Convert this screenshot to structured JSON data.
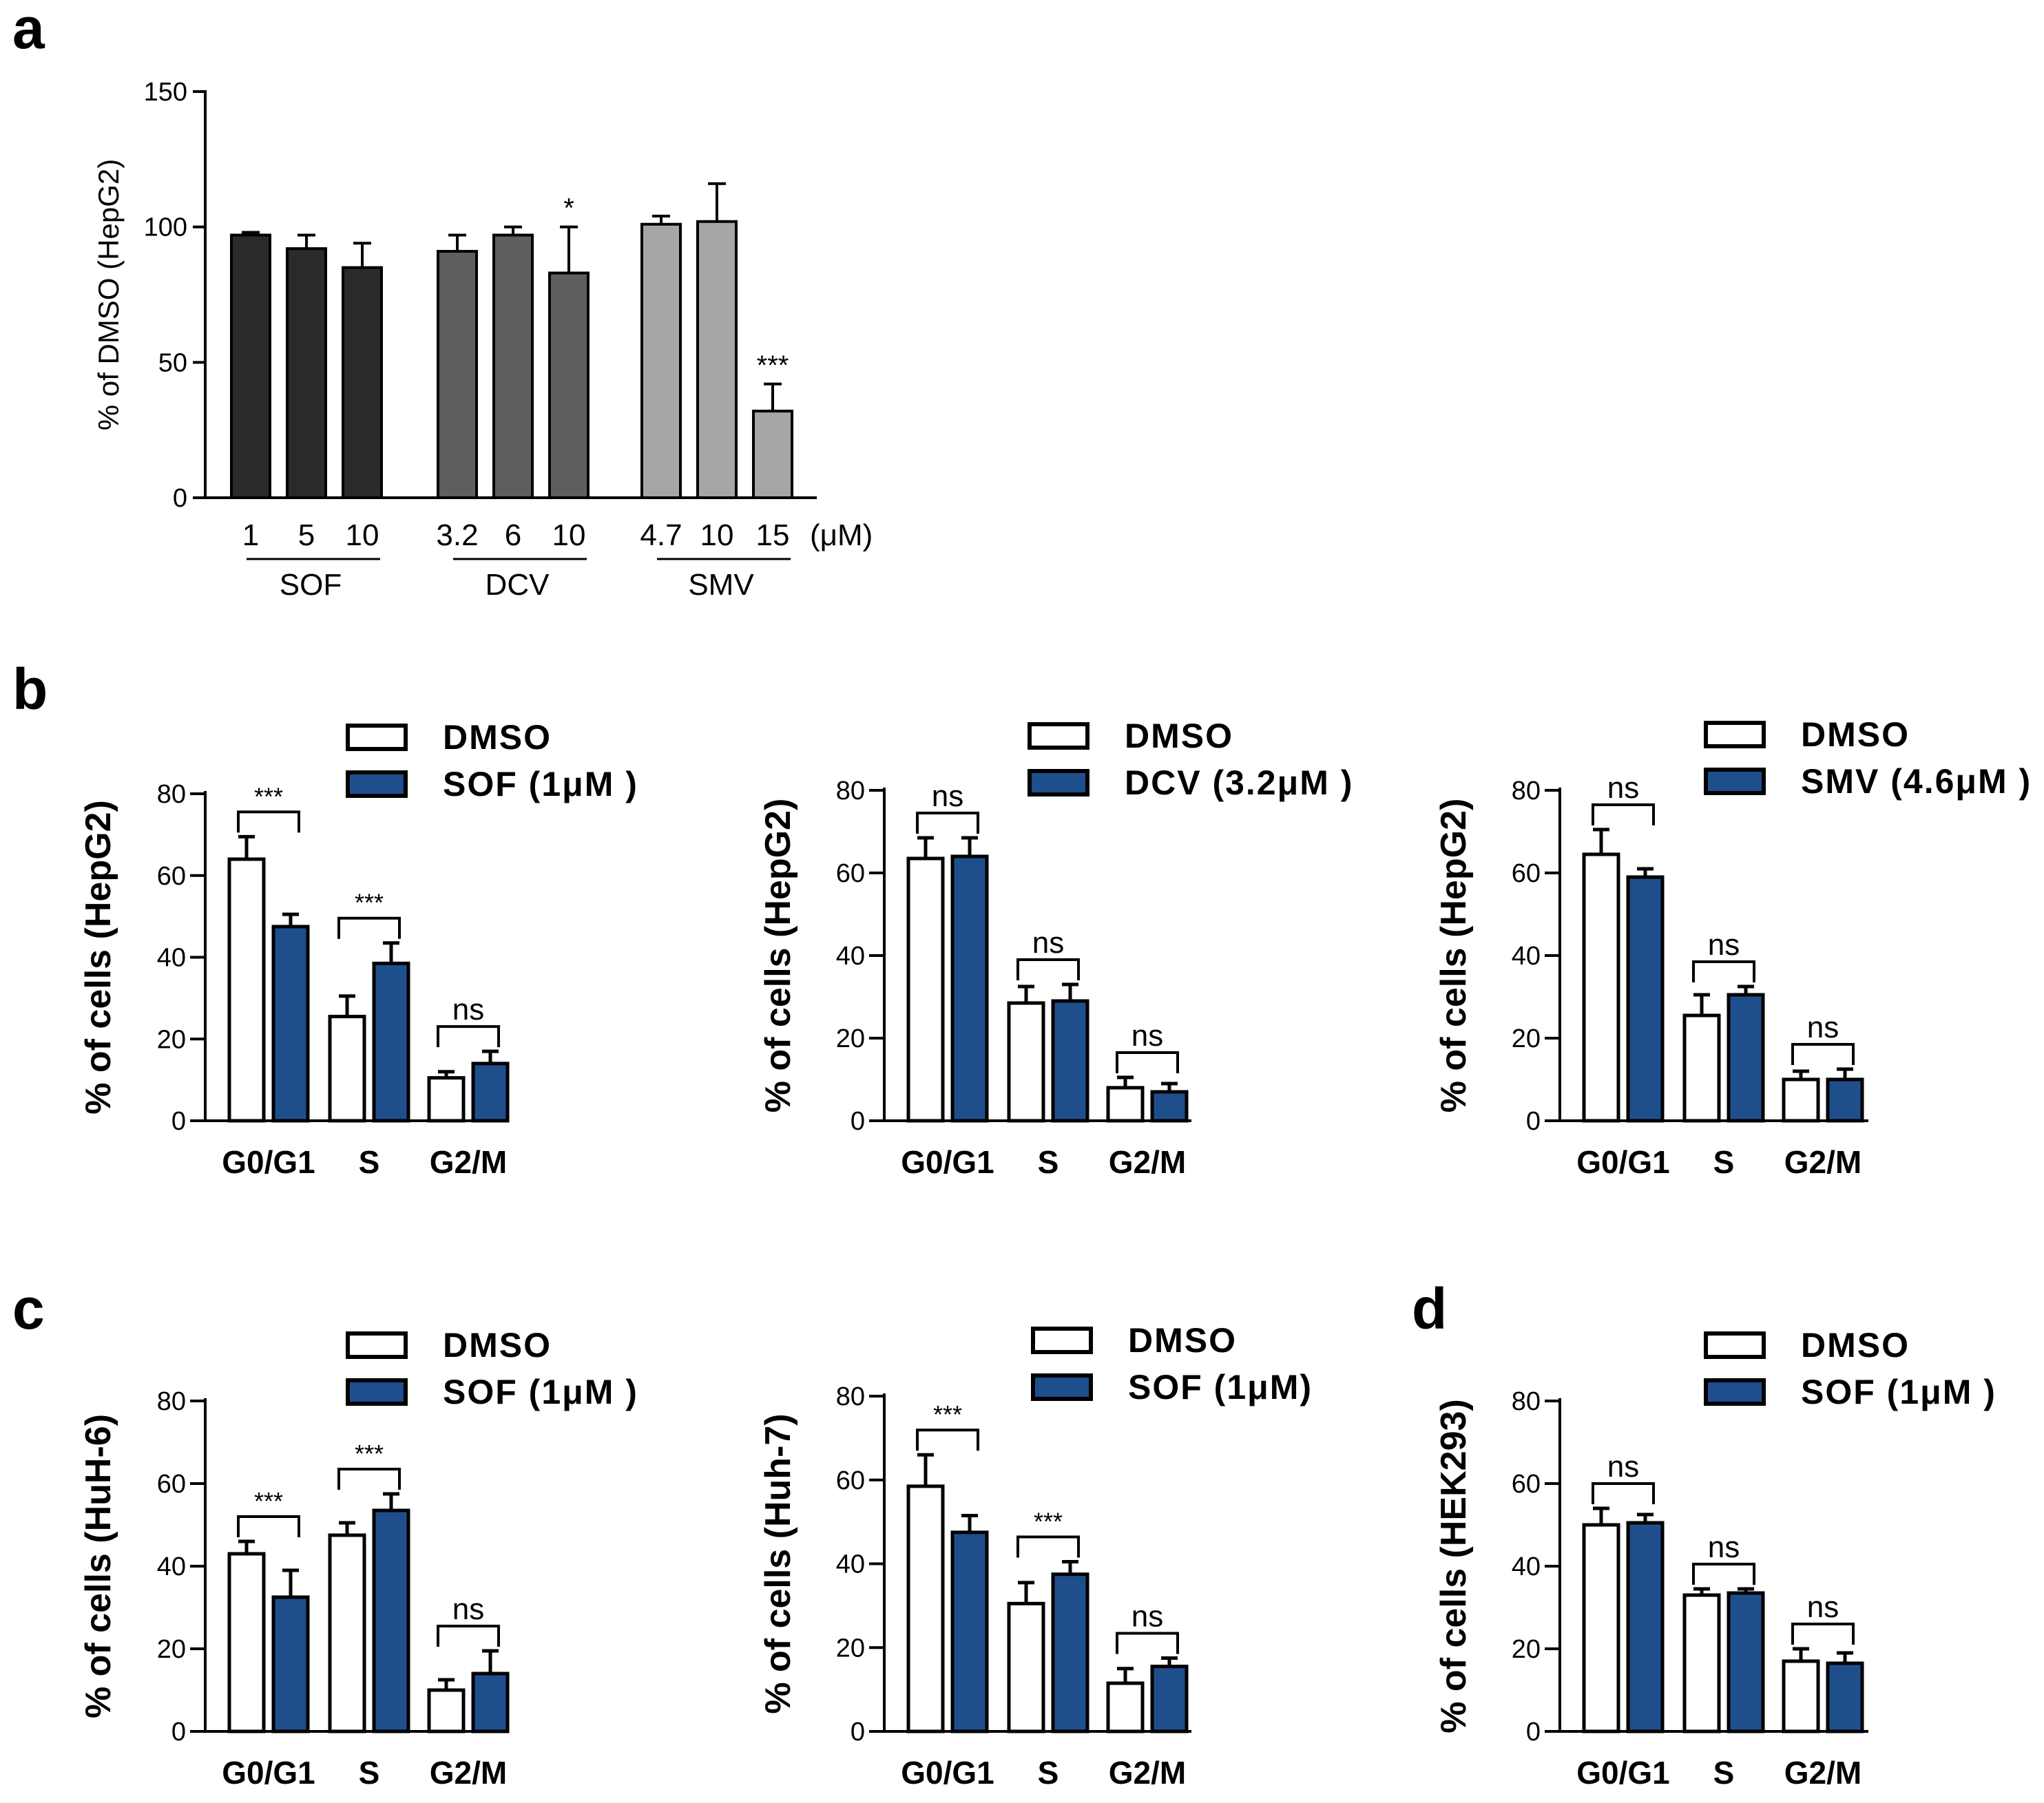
{
  "colors": {
    "sof_bar": "#2a2a2a",
    "dcv_bar": "#5e5e5e",
    "smv_bar": "#a6a6a6",
    "dmso_fill": "#ffffff",
    "treated_fill": "#1f4e8c",
    "axis": "#000000"
  },
  "panel_letters": {
    "a": "a",
    "b": "b",
    "c": "c",
    "d": "d"
  },
  "chart_data": [
    {
      "id": "a",
      "type": "bar",
      "ylabel": "% of DMSO (HepG2)",
      "ylim": [
        0,
        150
      ],
      "yticks": [
        0,
        50,
        100,
        150
      ],
      "unit_label": "(μM)",
      "groups": [
        {
          "name": "SOF",
          "color_key": "sof_bar",
          "categories": [
            "1",
            "5",
            "10"
          ],
          "values": [
            97,
            92,
            85
          ],
          "errors": [
            1,
            5,
            9
          ],
          "sig": [
            "",
            "",
            ""
          ]
        },
        {
          "name": "DCV",
          "color_key": "dcv_bar",
          "categories": [
            "3.2",
            "6",
            "10"
          ],
          "values": [
            91,
            97,
            83
          ],
          "errors": [
            6,
            3,
            17
          ],
          "sig": [
            "",
            "",
            "*"
          ]
        },
        {
          "name": "SMV",
          "color_key": "smv_bar",
          "categories": [
            "4.7",
            "10",
            "15"
          ],
          "values": [
            101,
            102,
            32
          ],
          "errors": [
            3,
            14,
            10
          ],
          "sig": [
            "",
            "",
            "***"
          ]
        }
      ]
    },
    {
      "id": "b1",
      "type": "bar",
      "ylabel": "% of cells (HepG2)",
      "ylim": [
        0,
        80
      ],
      "yticks": [
        0,
        20,
        40,
        60,
        80
      ],
      "categories": [
        "G0/G1",
        "S",
        "G2/M"
      ],
      "series": [
        {
          "name": "DMSO",
          "values": [
            64,
            25.5,
            10.5
          ],
          "errors": [
            5.5,
            5,
            1.5
          ]
        },
        {
          "name": "SOF (1μM )",
          "values": [
            47.5,
            38.5,
            14
          ],
          "errors": [
            3,
            5,
            3
          ]
        }
      ],
      "significance": [
        "***",
        "***",
        "ns"
      ]
    },
    {
      "id": "b2",
      "type": "bar",
      "ylabel": "% of cells (HepG2)",
      "ylim": [
        0,
        80
      ],
      "yticks": [
        0,
        20,
        40,
        60,
        80
      ],
      "categories": [
        "G0/G1",
        "S",
        "G2/M"
      ],
      "series": [
        {
          "name": "DMSO",
          "values": [
            63.5,
            28.5,
            8
          ],
          "errors": [
            5,
            4,
            2.5
          ]
        },
        {
          "name": "DCV (3.2μM )",
          "values": [
            64,
            29,
            7
          ],
          "errors": [
            4.5,
            4,
            2
          ]
        }
      ],
      "significance": [
        "ns",
        "ns",
        "ns"
      ]
    },
    {
      "id": "b3",
      "type": "bar",
      "ylabel": "% of cells (HepG2)",
      "ylim": [
        0,
        80
      ],
      "yticks": [
        0,
        20,
        40,
        60,
        80
      ],
      "categories": [
        "G0/G1",
        "S",
        "G2/M"
      ],
      "series": [
        {
          "name": "DMSO",
          "values": [
            64.5,
            25.5,
            10
          ],
          "errors": [
            6,
            5,
            2
          ]
        },
        {
          "name": "SMV (4.6μM )",
          "values": [
            59,
            30.5,
            10
          ],
          "errors": [
            2,
            2,
            2.5
          ]
        }
      ],
      "significance": [
        "ns",
        "ns",
        "ns"
      ]
    },
    {
      "id": "c1",
      "type": "bar",
      "ylabel": "% of cells (HuH-6)",
      "ylim": [
        0,
        80
      ],
      "yticks": [
        0,
        20,
        40,
        60,
        80
      ],
      "categories": [
        "G0/G1",
        "S",
        "G2/M"
      ],
      "series": [
        {
          "name": "DMSO",
          "values": [
            43,
            47.5,
            10
          ],
          "errors": [
            3,
            3,
            2.5
          ]
        },
        {
          "name": "SOF (1μM )",
          "values": [
            32.5,
            53.5,
            14
          ],
          "errors": [
            6.5,
            4,
            5.5
          ]
        }
      ],
      "significance": [
        "***",
        "***",
        "ns"
      ]
    },
    {
      "id": "c2",
      "type": "bar",
      "ylabel": "% of cells (Huh-7)",
      "ylim": [
        0,
        80
      ],
      "yticks": [
        0,
        20,
        40,
        60,
        80
      ],
      "categories": [
        "G0/G1",
        "S",
        "G2/M"
      ],
      "series": [
        {
          "name": "DMSO",
          "values": [
            58.5,
            30.5,
            11.5
          ],
          "errors": [
            7.5,
            5,
            3.5
          ]
        },
        {
          "name": "SOF (1μM)",
          "values": [
            47.5,
            37.5,
            15.5
          ],
          "errors": [
            4,
            3,
            2
          ]
        }
      ],
      "significance": [
        "***",
        "***",
        "ns"
      ]
    },
    {
      "id": "d",
      "type": "bar",
      "ylabel": "% of cells (HEK293)",
      "ylim": [
        0,
        80
      ],
      "yticks": [
        0,
        20,
        40,
        60,
        80
      ],
      "categories": [
        "G0/G1",
        "S",
        "G2/M"
      ],
      "series": [
        {
          "name": "DMSO",
          "values": [
            50,
            33,
            17
          ],
          "errors": [
            4,
            1.5,
            3
          ]
        },
        {
          "name": "SOF (1μM )",
          "values": [
            50.5,
            33.5,
            16.5
          ],
          "errors": [
            2,
            1,
            2.5
          ]
        }
      ],
      "significance": [
        "ns",
        "ns",
        "ns"
      ]
    }
  ]
}
